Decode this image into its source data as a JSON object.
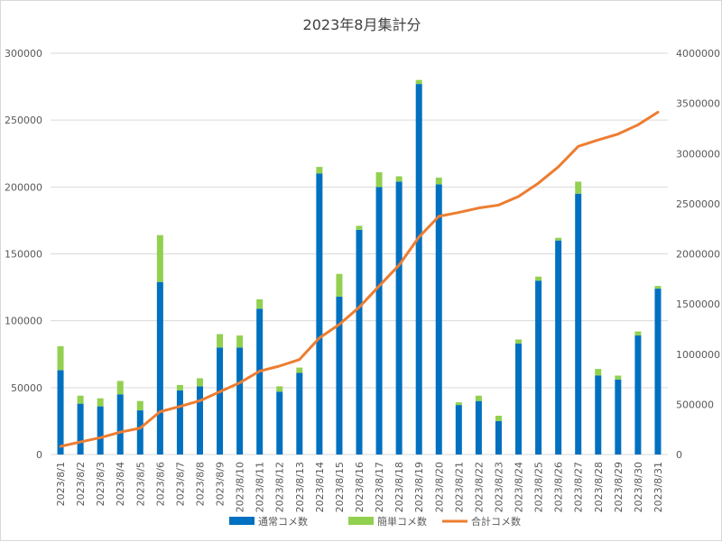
{
  "chart_data": {
    "type": "bar",
    "stacked": true,
    "title": "2023年8月集計分",
    "categories": [
      "2023/8/1",
      "2023/8/2",
      "2023/8/3",
      "2023/8/4",
      "2023/8/5",
      "2023/8/6",
      "2023/8/7",
      "2023/8/8",
      "2023/8/9",
      "2023/8/10",
      "2023/8/11",
      "2023/8/12",
      "2023/8/13",
      "2023/8/14",
      "2023/8/15",
      "2023/8/16",
      "2023/8/17",
      "2023/8/18",
      "2023/8/19",
      "2023/8/20",
      "2023/8/21",
      "2023/8/22",
      "2023/8/23",
      "2023/8/24",
      "2023/8/25",
      "2023/8/26",
      "2023/8/27",
      "2023/8/28",
      "2023/8/29",
      "2023/8/30",
      "2023/8/31"
    ],
    "y_left": {
      "min": 0,
      "max": 300000,
      "ticks": [
        "0",
        "50000",
        "100000",
        "150000",
        "200000",
        "250000",
        "300000"
      ]
    },
    "y_right": {
      "min": 0,
      "max": 4000000,
      "ticks": [
        "0",
        "500000",
        "1000000",
        "1500000",
        "2000000",
        "2500000",
        "3000000",
        "3500000",
        "4000000"
      ]
    },
    "series": [
      {
        "name": "通常コメ数",
        "axis": "left",
        "kind": "bar",
        "color": "#0070c0",
        "values": [
          63000,
          38000,
          36000,
          45000,
          33000,
          129000,
          48000,
          51000,
          80000,
          80000,
          109000,
          47000,
          61000,
          210000,
          118000,
          168000,
          200000,
          204000,
          277000,
          202000,
          37000,
          40000,
          25000,
          83000,
          130000,
          160000,
          195000,
          59000,
          56000,
          89000,
          124000
        ]
      },
      {
        "name": "簡単コメ数",
        "axis": "left",
        "kind": "bar",
        "color": "#92d050",
        "values": [
          18000,
          6000,
          6000,
          10000,
          7000,
          35000,
          4000,
          6000,
          10000,
          9000,
          7000,
          4000,
          4000,
          5000,
          17000,
          3000,
          11000,
          4000,
          3000,
          5000,
          2000,
          4000,
          4000,
          3000,
          3000,
          2000,
          9000,
          5000,
          3000,
          3000,
          2000
        ]
      },
      {
        "name": "合計コメ数",
        "axis": "right",
        "kind": "line",
        "color": "#ed7d31",
        "values": [
          81000,
          125000,
          168000,
          223000,
          263000,
          427000,
          479000,
          536000,
          626000,
          715000,
          831000,
          882000,
          947000,
          1162000,
          1297000,
          1468000,
          1679000,
          1887000,
          2167000,
          2374000,
          2413000,
          2457000,
          2486000,
          2572000,
          2705000,
          2867000,
          3071000,
          3135000,
          3194000,
          3286000,
          3412000
        ]
      }
    ],
    "legend": "bottom",
    "grid": true
  }
}
